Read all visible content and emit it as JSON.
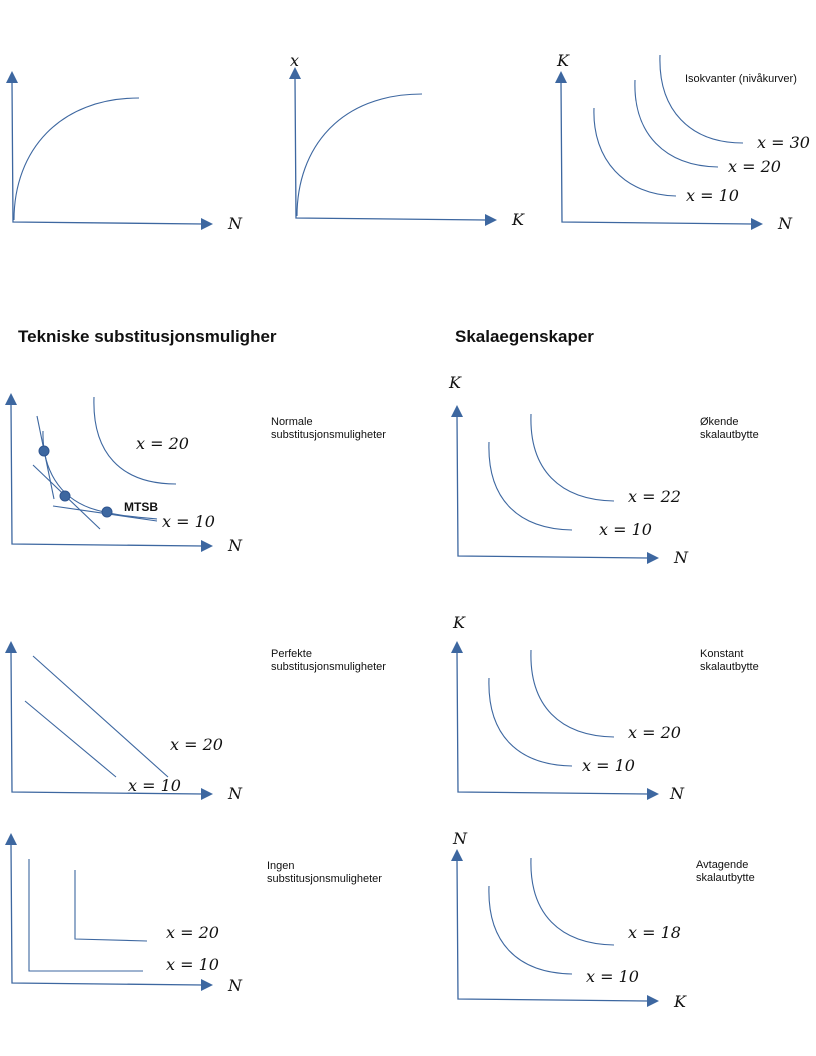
{
  "headings": {
    "substitution": "Tekniske substitusjonsmuligher",
    "scale": "Skalaegenskaper"
  },
  "top": {
    "panel1": {
      "x_axis": "N"
    },
    "panel2": {
      "y_axis": "x",
      "x_axis": "K"
    },
    "panel3": {
      "y_axis": "K",
      "x_axis": "N",
      "note": "Isokvanter (nivåkurver)",
      "labels": [
        "x = 30",
        "x = 20",
        "x = 10"
      ]
    }
  },
  "substitution": {
    "normal": {
      "note": [
        "Normale",
        "substitusjonsmuligheter"
      ],
      "x_axis": "N",
      "labels": [
        "x = 20",
        "x = 10"
      ],
      "mrts": "MTSB"
    },
    "perfect": {
      "note": [
        "Perfekte",
        "substitusjonsmuligheter"
      ],
      "x_axis": "N",
      "labels": [
        "x = 20",
        "x = 10"
      ]
    },
    "none": {
      "note": [
        "Ingen",
        "substitusjonsmuligheter"
      ],
      "x_axis": "N",
      "labels": [
        "x = 20",
        "x = 10"
      ]
    }
  },
  "scale": {
    "increasing": {
      "note": [
        "Økende",
        "skalautbytte"
      ],
      "y_axis": "K",
      "x_axis": "N",
      "labels": [
        "x = 22",
        "x = 10"
      ]
    },
    "constant": {
      "note": [
        "Konstant",
        "skalautbytte"
      ],
      "y_axis": "K",
      "x_axis": "N",
      "labels": [
        "x = 20",
        "x = 10"
      ]
    },
    "decreasing": {
      "note": [
        "Avtagende",
        "skalautbytte"
      ],
      "y_axis": "N",
      "x_axis": "K",
      "labels": [
        "x = 18",
        "x = 10"
      ]
    }
  }
}
